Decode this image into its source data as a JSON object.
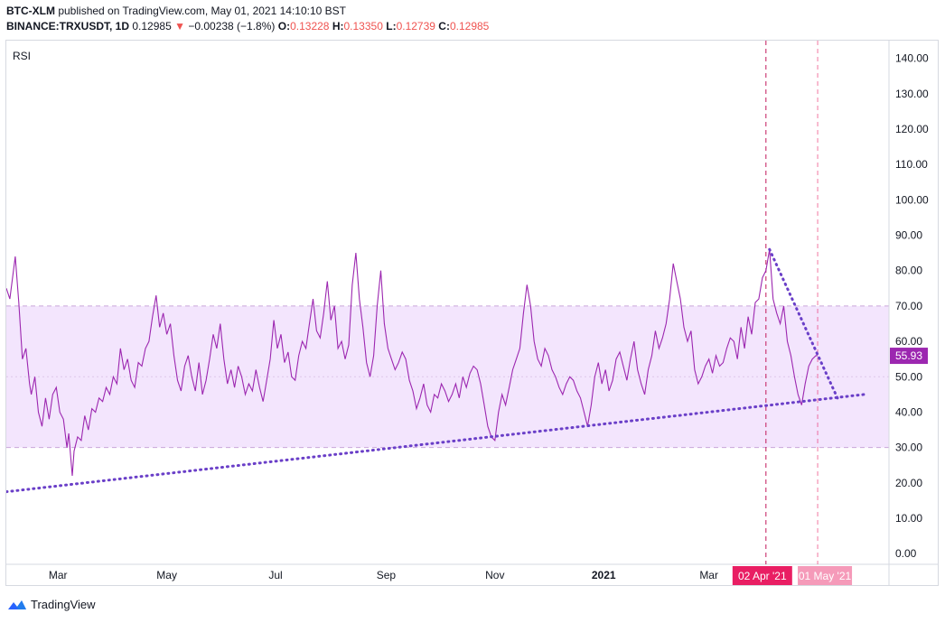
{
  "header": {
    "line1_bold": "BTC-XLM",
    "line1_rest": " published on TradingView.com, May 01, 2021 14:10:10 BST",
    "symbol": "BINANCE:TRXUSDT, 1D",
    "price": "0.12985",
    "change_arrow": "▼",
    "change": "−0.00238 (−1.8%)",
    "o_label": "O:",
    "o_value": "0.13228",
    "h_label": "H:",
    "h_value": "0.13350",
    "l_label": "L:",
    "l_value": "0.12739",
    "c_label": "C:",
    "c_value": "0.12985"
  },
  "footer": {
    "brand": "TradingView",
    "logo_icon": "tradingview-logo-icon"
  },
  "colors": {
    "rsi_line": "#9c27b0",
    "band_fill": "#f3e5fd",
    "band_border": "#c9a7d9",
    "trendline": "#6a3fc8",
    "price_label_bg": "#9c27b0",
    "crosshair_apr": "#c2185b",
    "crosshair_may": "#e91e63",
    "apr_label_bg": "#e91e63",
    "may_label_bg": "#f48fb1"
  },
  "chart_data": {
    "type": "line",
    "indicator_label": "RSI",
    "x_tick_labels": [
      "Mar",
      "May",
      "Jul",
      "Sep",
      "Nov",
      "2021",
      "Mar"
    ],
    "x_tick_dates": [
      "2020-03-01",
      "2020-05-01",
      "2020-07-01",
      "2020-09-01",
      "2020-11-01",
      "2021-01-01",
      "2021-03-01"
    ],
    "x_range": [
      "2020-02-01",
      "2021-06-10"
    ],
    "y_ticks": [
      0,
      10,
      20,
      30,
      40,
      50,
      60,
      70,
      80,
      90,
      100,
      110,
      120,
      130,
      140
    ],
    "y_tick_labels": [
      "0.00",
      "10.00",
      "20.00",
      "30.00",
      "40.00",
      "50.00",
      "60.00",
      "70.00",
      "80.00",
      "90.00",
      "100.00",
      "110.00",
      "120.00",
      "130.00",
      "140.00"
    ],
    "ylim": [
      -3,
      145
    ],
    "band": {
      "upper": 70,
      "middle": 50,
      "lower": 30
    },
    "last_value_label": "55.93",
    "crosshair_labels": [
      {
        "date": "2021-04-02",
        "label": "02 Apr '21"
      },
      {
        "date": "2021-05-01",
        "label": "01 May '21"
      }
    ],
    "trendlines": [
      {
        "name": "support",
        "points": [
          [
            "2020-02-01",
            17.5
          ],
          [
            "2021-05-27",
            45
          ]
        ]
      },
      {
        "name": "resistance",
        "points": [
          [
            "2021-04-04",
            86
          ],
          [
            "2021-05-13",
            43
          ]
        ]
      }
    ],
    "series": [
      {
        "points": [
          [
            "2020-02-01",
            75
          ],
          [
            "2020-02-03",
            72
          ],
          [
            "2020-02-05",
            80
          ],
          [
            "2020-02-06",
            84
          ],
          [
            "2020-02-08",
            71
          ],
          [
            "2020-02-10",
            55
          ],
          [
            "2020-02-12",
            58
          ],
          [
            "2020-02-14",
            48
          ],
          [
            "2020-02-15",
            45
          ],
          [
            "2020-02-17",
            50
          ],
          [
            "2020-02-19",
            40
          ],
          [
            "2020-02-21",
            36
          ],
          [
            "2020-02-23",
            44
          ],
          [
            "2020-02-25",
            38
          ],
          [
            "2020-02-27",
            45
          ],
          [
            "2020-02-29",
            47
          ],
          [
            "2020-03-02",
            40
          ],
          [
            "2020-03-04",
            38
          ],
          [
            "2020-03-06",
            30
          ],
          [
            "2020-03-07",
            34
          ],
          [
            "2020-03-09",
            22
          ],
          [
            "2020-03-10",
            29
          ],
          [
            "2020-03-12",
            33
          ],
          [
            "2020-03-14",
            32
          ],
          [
            "2020-03-16",
            39
          ],
          [
            "2020-03-18",
            35
          ],
          [
            "2020-03-20",
            41
          ],
          [
            "2020-03-22",
            40
          ],
          [
            "2020-03-24",
            44
          ],
          [
            "2020-03-26",
            43
          ],
          [
            "2020-03-28",
            47
          ],
          [
            "2020-03-30",
            45
          ],
          [
            "2020-04-01",
            50
          ],
          [
            "2020-04-03",
            48
          ],
          [
            "2020-04-05",
            58
          ],
          [
            "2020-04-07",
            52
          ],
          [
            "2020-04-09",
            55
          ],
          [
            "2020-04-11",
            49
          ],
          [
            "2020-04-13",
            47
          ],
          [
            "2020-04-15",
            54
          ],
          [
            "2020-04-17",
            53
          ],
          [
            "2020-04-19",
            58
          ],
          [
            "2020-04-21",
            60
          ],
          [
            "2020-04-23",
            67
          ],
          [
            "2020-04-25",
            73
          ],
          [
            "2020-04-27",
            64
          ],
          [
            "2020-04-29",
            68
          ],
          [
            "2020-05-01",
            62
          ],
          [
            "2020-05-03",
            65
          ],
          [
            "2020-05-05",
            56
          ],
          [
            "2020-05-07",
            49
          ],
          [
            "2020-05-09",
            46
          ],
          [
            "2020-05-11",
            53
          ],
          [
            "2020-05-13",
            56
          ],
          [
            "2020-05-15",
            50
          ],
          [
            "2020-05-17",
            46
          ],
          [
            "2020-05-19",
            54
          ],
          [
            "2020-05-21",
            45
          ],
          [
            "2020-05-23",
            49
          ],
          [
            "2020-05-25",
            55
          ],
          [
            "2020-05-27",
            62
          ],
          [
            "2020-05-29",
            58
          ],
          [
            "2020-05-31",
            65
          ],
          [
            "2020-06-02",
            55
          ],
          [
            "2020-06-04",
            48
          ],
          [
            "2020-06-06",
            52
          ],
          [
            "2020-06-08",
            47
          ],
          [
            "2020-06-10",
            53
          ],
          [
            "2020-06-12",
            50
          ],
          [
            "2020-06-14",
            45
          ],
          [
            "2020-06-16",
            48
          ],
          [
            "2020-06-18",
            46
          ],
          [
            "2020-06-20",
            52
          ],
          [
            "2020-06-22",
            47
          ],
          [
            "2020-06-24",
            43
          ],
          [
            "2020-06-26",
            49
          ],
          [
            "2020-06-28",
            55
          ],
          [
            "2020-06-30",
            66
          ],
          [
            "2020-07-02",
            58
          ],
          [
            "2020-07-04",
            62
          ],
          [
            "2020-07-06",
            54
          ],
          [
            "2020-07-08",
            57
          ],
          [
            "2020-07-10",
            50
          ],
          [
            "2020-07-12",
            49
          ],
          [
            "2020-07-14",
            56
          ],
          [
            "2020-07-16",
            60
          ],
          [
            "2020-07-18",
            58
          ],
          [
            "2020-07-20",
            65
          ],
          [
            "2020-07-22",
            72
          ],
          [
            "2020-07-24",
            63
          ],
          [
            "2020-07-26",
            61
          ],
          [
            "2020-07-28",
            68
          ],
          [
            "2020-07-30",
            77
          ],
          [
            "2020-08-01",
            66
          ],
          [
            "2020-08-03",
            70
          ],
          [
            "2020-08-05",
            58
          ],
          [
            "2020-08-07",
            60
          ],
          [
            "2020-08-09",
            55
          ],
          [
            "2020-08-11",
            59
          ],
          [
            "2020-08-13",
            76
          ],
          [
            "2020-08-15",
            85
          ],
          [
            "2020-08-17",
            72
          ],
          [
            "2020-08-19",
            64
          ],
          [
            "2020-08-21",
            54
          ],
          [
            "2020-08-23",
            50
          ],
          [
            "2020-08-25",
            56
          ],
          [
            "2020-08-27",
            70
          ],
          [
            "2020-08-29",
            80
          ],
          [
            "2020-08-31",
            65
          ],
          [
            "2020-09-02",
            58
          ],
          [
            "2020-09-04",
            55
          ],
          [
            "2020-09-06",
            52
          ],
          [
            "2020-09-08",
            54
          ],
          [
            "2020-09-10",
            57
          ],
          [
            "2020-09-12",
            55
          ],
          [
            "2020-09-14",
            49
          ],
          [
            "2020-09-16",
            46
          ],
          [
            "2020-09-18",
            41
          ],
          [
            "2020-09-20",
            44
          ],
          [
            "2020-09-22",
            48
          ],
          [
            "2020-09-24",
            42
          ],
          [
            "2020-09-26",
            40
          ],
          [
            "2020-09-28",
            45
          ],
          [
            "2020-09-30",
            44
          ],
          [
            "2020-10-02",
            48
          ],
          [
            "2020-10-04",
            46
          ],
          [
            "2020-10-06",
            43
          ],
          [
            "2020-10-08",
            45
          ],
          [
            "2020-10-10",
            48
          ],
          [
            "2020-10-12",
            44
          ],
          [
            "2020-10-14",
            50
          ],
          [
            "2020-10-16",
            47
          ],
          [
            "2020-10-18",
            51
          ],
          [
            "2020-10-20",
            53
          ],
          [
            "2020-10-22",
            52
          ],
          [
            "2020-10-24",
            48
          ],
          [
            "2020-10-26",
            42
          ],
          [
            "2020-10-28",
            36
          ],
          [
            "2020-10-30",
            33
          ],
          [
            "2020-11-01",
            32
          ],
          [
            "2020-11-03",
            40
          ],
          [
            "2020-11-05",
            45
          ],
          [
            "2020-11-07",
            42
          ],
          [
            "2020-11-09",
            47
          ],
          [
            "2020-11-11",
            52
          ],
          [
            "2020-11-13",
            55
          ],
          [
            "2020-11-15",
            58
          ],
          [
            "2020-11-17",
            68
          ],
          [
            "2020-11-19",
            76
          ],
          [
            "2020-11-21",
            70
          ],
          [
            "2020-11-23",
            60
          ],
          [
            "2020-11-25",
            55
          ],
          [
            "2020-11-27",
            53
          ],
          [
            "2020-11-29",
            58
          ],
          [
            "2020-12-01",
            56
          ],
          [
            "2020-12-03",
            52
          ],
          [
            "2020-12-05",
            50
          ],
          [
            "2020-12-07",
            47
          ],
          [
            "2020-12-09",
            45
          ],
          [
            "2020-12-11",
            48
          ],
          [
            "2020-12-13",
            50
          ],
          [
            "2020-12-15",
            49
          ],
          [
            "2020-12-17",
            46
          ],
          [
            "2020-12-19",
            44
          ],
          [
            "2020-12-21",
            40
          ],
          [
            "2020-12-23",
            36
          ],
          [
            "2020-12-25",
            42
          ],
          [
            "2020-12-27",
            50
          ],
          [
            "2020-12-29",
            54
          ],
          [
            "2020-12-31",
            48
          ],
          [
            "2021-01-02",
            52
          ],
          [
            "2021-01-04",
            46
          ],
          [
            "2021-01-06",
            49
          ],
          [
            "2021-01-08",
            55
          ],
          [
            "2021-01-10",
            57
          ],
          [
            "2021-01-12",
            53
          ],
          [
            "2021-01-14",
            49
          ],
          [
            "2021-01-16",
            55
          ],
          [
            "2021-01-18",
            60
          ],
          [
            "2021-01-20",
            52
          ],
          [
            "2021-01-22",
            48
          ],
          [
            "2021-01-24",
            45
          ],
          [
            "2021-01-26",
            52
          ],
          [
            "2021-01-28",
            56
          ],
          [
            "2021-01-30",
            63
          ],
          [
            "2021-02-01",
            58
          ],
          [
            "2021-02-03",
            61
          ],
          [
            "2021-02-05",
            65
          ],
          [
            "2021-02-07",
            72
          ],
          [
            "2021-02-09",
            82
          ],
          [
            "2021-02-11",
            77
          ],
          [
            "2021-02-13",
            72
          ],
          [
            "2021-02-15",
            64
          ],
          [
            "2021-02-17",
            60
          ],
          [
            "2021-02-19",
            63
          ],
          [
            "2021-02-21",
            52
          ],
          [
            "2021-02-23",
            48
          ],
          [
            "2021-02-25",
            50
          ],
          [
            "2021-02-27",
            53
          ],
          [
            "2021-03-01",
            55
          ],
          [
            "2021-03-03",
            51
          ],
          [
            "2021-03-05",
            56
          ],
          [
            "2021-03-07",
            53
          ],
          [
            "2021-03-09",
            54
          ],
          [
            "2021-03-11",
            58
          ],
          [
            "2021-03-13",
            61
          ],
          [
            "2021-03-15",
            60
          ],
          [
            "2021-03-17",
            55
          ],
          [
            "2021-03-19",
            64
          ],
          [
            "2021-03-21",
            58
          ],
          [
            "2021-03-23",
            67
          ],
          [
            "2021-03-25",
            62
          ],
          [
            "2021-03-27",
            71
          ],
          [
            "2021-03-29",
            72
          ],
          [
            "2021-03-31",
            78
          ],
          [
            "2021-04-02",
            80
          ],
          [
            "2021-04-04",
            86
          ],
          [
            "2021-04-06",
            72
          ],
          [
            "2021-04-08",
            68
          ],
          [
            "2021-04-10",
            65
          ],
          [
            "2021-04-12",
            70
          ],
          [
            "2021-04-14",
            60
          ],
          [
            "2021-04-16",
            56
          ],
          [
            "2021-04-18",
            50
          ],
          [
            "2021-04-20",
            45
          ],
          [
            "2021-04-22",
            42
          ],
          [
            "2021-04-24",
            48
          ],
          [
            "2021-04-26",
            53
          ],
          [
            "2021-04-28",
            55
          ],
          [
            "2021-04-30",
            56
          ],
          [
            "2021-05-01",
            55.93
          ]
        ]
      }
    ]
  }
}
